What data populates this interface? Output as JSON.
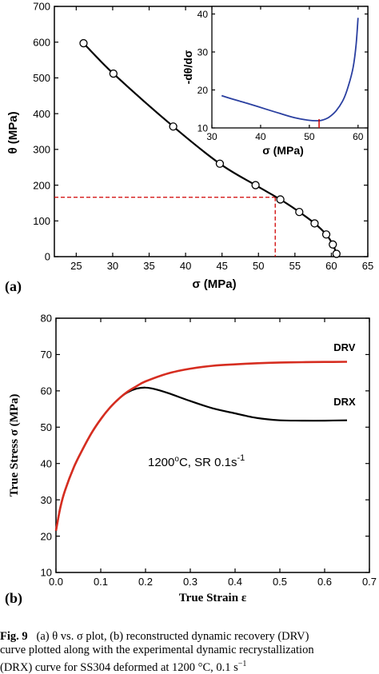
{
  "chart_data": [
    {
      "type": "scatter",
      "panel_label": "(a)",
      "xlabel": "σ (MPa)",
      "ylabel": "θ (MPa)",
      "xlim": [
        22,
        65
      ],
      "ylim": [
        0,
        700
      ],
      "xticks": [
        25,
        30,
        35,
        40,
        45,
        50,
        55,
        60,
        65
      ],
      "yticks": [
        0,
        100,
        200,
        300,
        400,
        500,
        600,
        700
      ],
      "series": [
        {
          "marker": "open-circle",
          "color": "#000000",
          "x": [
            26,
            30.1,
            38.3,
            44.7,
            49.6,
            53,
            55.6,
            57.7,
            59.3,
            60.2,
            60.7
          ],
          "y": [
            597,
            512,
            364,
            260,
            200,
            160,
            125,
            93,
            62,
            34,
            8
          ]
        }
      ],
      "guide": {
        "color": "#d00000",
        "style": "dashed",
        "x": 52.3,
        "y": 166
      },
      "inset": {
        "type": "line",
        "xlabel": "σ (MPa)",
        "ylabel": "-dθ/dσ",
        "xlim": [
          30,
          62
        ],
        "ylim": [
          10,
          42
        ],
        "xticks": [
          30,
          40,
          50,
          60
        ],
        "yticks": [
          10,
          20,
          30,
          40
        ],
        "series": [
          {
            "color": "#2a3fa0",
            "x": [
              32,
              35,
              38,
              41,
              44,
              47,
              50,
              51.5,
              52.5,
              54,
              55.5,
              57,
              58,
              59,
              59.6,
              60
            ],
            "y": [
              18.5,
              17.3,
              16.2,
              15.0,
              13.8,
              12.7,
              12.0,
              11.9,
              12.0,
              12.8,
              14.5,
              17.5,
              21,
              26,
              32,
              39
            ]
          }
        ],
        "marker_x": 52,
        "marker_color": "#d00000"
      }
    },
    {
      "type": "line",
      "panel_label": "(b)",
      "xlabel": "True Strain ε",
      "ylabel": "True Stress σ (MPa)",
      "xlim": [
        0,
        0.7
      ],
      "ylim": [
        10,
        80
      ],
      "xticks": [
        0.0,
        0.1,
        0.2,
        0.3,
        0.4,
        0.5,
        0.6,
        0.7
      ],
      "yticks": [
        10,
        20,
        30,
        40,
        50,
        60,
        70,
        80
      ],
      "annotation": {
        "text_main": "1200",
        "text_deg": "o",
        "text_rest": "C, SR 0.1s",
        "text_sup": "-1",
        "x": 0.2,
        "y": 45.5
      },
      "series": [
        {
          "name": "DRX",
          "color": "#000000",
          "x": [
            0,
            0.01,
            0.02,
            0.04,
            0.06,
            0.08,
            0.1,
            0.12,
            0.14,
            0.16,
            0.18,
            0.2,
            0.22,
            0.25,
            0.3,
            0.35,
            0.4,
            0.45,
            0.5,
            0.55,
            0.6,
            0.65
          ],
          "y": [
            21.5,
            28,
            32.5,
            39,
            44,
            48.5,
            52.2,
            55.3,
            57.8,
            59.6,
            60.6,
            60.9,
            60.5,
            59.4,
            57.2,
            55.2,
            53.8,
            52.5,
            51.9,
            51.8,
            51.8,
            51.9
          ]
        },
        {
          "name": "DRV",
          "color": "#d62d20",
          "x": [
            0,
            0.01,
            0.02,
            0.04,
            0.06,
            0.08,
            0.1,
            0.12,
            0.14,
            0.16,
            0.18,
            0.2,
            0.25,
            0.3,
            0.35,
            0.4,
            0.45,
            0.5,
            0.55,
            0.6,
            0.65
          ],
          "y": [
            21.5,
            28,
            32.5,
            39,
            44,
            48.5,
            52.2,
            55.3,
            57.8,
            59.8,
            61.3,
            62.6,
            64.8,
            66.1,
            66.9,
            67.3,
            67.6,
            67.8,
            67.9,
            67.95,
            68.0
          ]
        }
      ],
      "labels": [
        {
          "text": "DRV",
          "x": 0.62,
          "y": 71
        },
        {
          "text": "DRX",
          "x": 0.62,
          "y": 56
        }
      ]
    }
  ],
  "caption": {
    "fig_label": "Fig. 9",
    "line1": "(a) θ vs. σ plot, (b) reconstructed dynamic recovery (DRV)",
    "line2": "curve plotted along with the experimental dynamic recrystallization",
    "line3_main": "(DRX) curve for SS304 deformed at 1200 °C, 0.1 s",
    "line3_sup": "−1"
  }
}
